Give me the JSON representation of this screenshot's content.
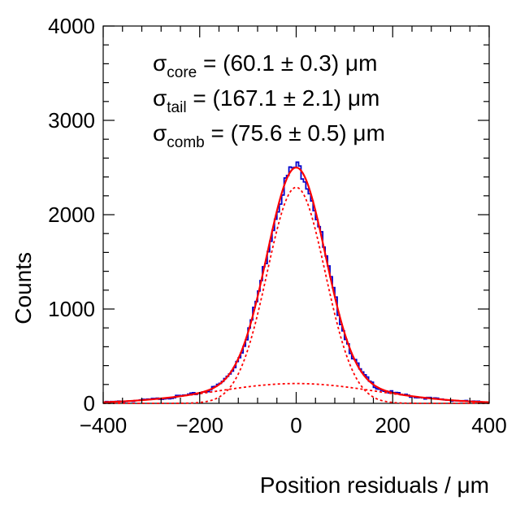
{
  "chart_data": {
    "type": "histogram",
    "xlabel": "Position residuals / μm",
    "ylabel": "Counts",
    "xlim": [
      -400,
      400
    ],
    "ylim": [
      0,
      4000
    ],
    "x_ticks": [
      -400,
      -200,
      0,
      200,
      400
    ],
    "x_tick_labels": [
      "−400",
      "−200",
      "0",
      "200",
      "400"
    ],
    "y_ticks": [
      0,
      1000,
      2000,
      3000,
      4000
    ],
    "y_tick_labels": [
      "0",
      "1000",
      "2000",
      "3000",
      "4000"
    ],
    "bin_width": 5,
    "grid": false,
    "annotations": [
      {
        "symbol": "σ",
        "sub": "core",
        "text": " = (60.1 ± 0.3) μm"
      },
      {
        "symbol": "σ",
        "sub": "tail",
        "text": " = (167.1 ± 2.1) μm"
      },
      {
        "symbol": "σ",
        "sub": "comb",
        "text": " = (75.6 ± 0.5) μm"
      }
    ],
    "fit": {
      "model": "double gaussian",
      "core": {
        "amplitude": 2290,
        "mean": 0,
        "sigma": 60.1
      },
      "tail": {
        "amplitude": 210,
        "mean": 0,
        "sigma": 167.1
      }
    },
    "series": [
      {
        "name": "data histogram",
        "style": "step",
        "color": "#0000cc"
      },
      {
        "name": "combined fit",
        "style": "solid",
        "color": "#ff0000"
      },
      {
        "name": "core gaussian",
        "style": "dotted",
        "color": "#ff0000"
      },
      {
        "name": "tail gaussian",
        "style": "dotted",
        "color": "#ff0000"
      }
    ]
  }
}
